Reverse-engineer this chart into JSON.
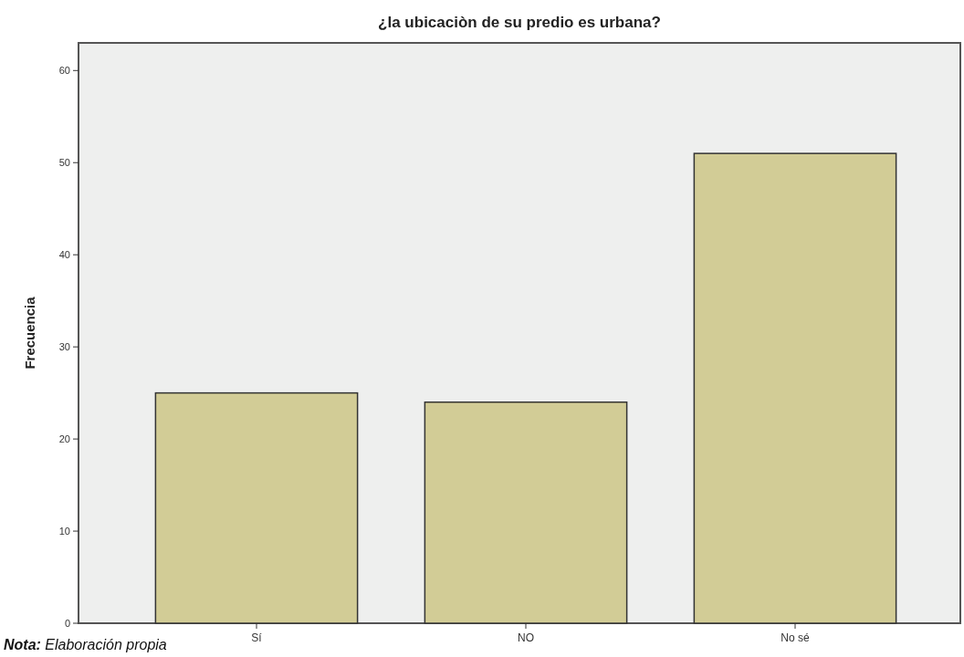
{
  "chart_data": {
    "type": "bar",
    "title": "¿la ubicaciòn de su predio es urbana?",
    "ylabel": "Frecuencia",
    "categories": [
      "Sí",
      "NO",
      "No sé"
    ],
    "values": [
      25,
      24,
      51
    ],
    "color": "#d2cc96",
    "ylim": [
      0,
      63
    ],
    "yticks": [
      0,
      10,
      20,
      30,
      40,
      50,
      60
    ],
    "grid": false,
    "annotations": [
      "Nota: Elaboración propia"
    ]
  }
}
